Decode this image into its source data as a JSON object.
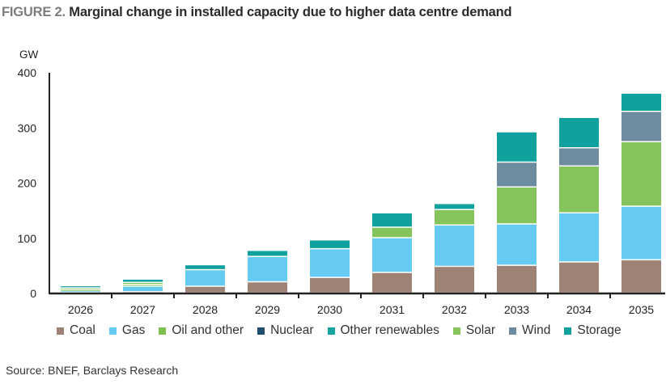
{
  "figure": {
    "label": "FIGURE 2.",
    "title": "Marginal change in installed capacity due to higher data centre demand",
    "source": "Source: BNEF, Barclays Research"
  },
  "chart_data": {
    "type": "bar",
    "stacked": true,
    "title": "Marginal change in installed capacity due to higher data centre demand",
    "xlabel": "",
    "ylabel": "GW",
    "ylim": [
      0,
      400
    ],
    "yticks": [
      0,
      100,
      200,
      300,
      400
    ],
    "grid": false,
    "legend_position": "bottom",
    "categories": [
      "2026",
      "2027",
      "2028",
      "2029",
      "2030",
      "2031",
      "2032",
      "2033",
      "2034",
      "2035"
    ],
    "series": [
      {
        "name": "Coal",
        "color": "#9E8275",
        "values": [
          1,
          2,
          12,
          20,
          28,
          37,
          48,
          50,
          56,
          60
        ]
      },
      {
        "name": "Gas",
        "color": "#66CBF2",
        "values": [
          3,
          10,
          30,
          46,
          52,
          63,
          75,
          75,
          89,
          97
        ]
      },
      {
        "name": "Oil and other",
        "color": "#7DC14C",
        "values": [
          2,
          3,
          0,
          0,
          0,
          0,
          0,
          0,
          0,
          0
        ]
      },
      {
        "name": "Nuclear",
        "color": "#1F4E6E",
        "values": [
          0,
          0,
          0,
          0,
          0,
          0,
          0,
          0,
          0,
          0
        ]
      },
      {
        "name": "Other renewables",
        "color": "#16A3A0",
        "values": [
          0,
          0,
          0,
          0,
          0,
          0,
          0,
          0,
          0,
          0
        ]
      },
      {
        "name": "Solar",
        "color": "#85C45A",
        "values": [
          3,
          4,
          0,
          0,
          0,
          19,
          28,
          67,
          85,
          117
        ]
      },
      {
        "name": "Wind",
        "color": "#6E8CA0",
        "values": [
          0,
          0,
          0,
          0,
          0,
          0,
          0,
          45,
          33,
          55
        ]
      },
      {
        "name": "Storage",
        "color": "#0FA19E",
        "values": [
          4,
          6,
          9,
          11,
          16,
          26,
          11,
          55,
          55,
          33
        ]
      }
    ]
  },
  "legend": [
    {
      "label": "Coal",
      "color": "#9E8275"
    },
    {
      "label": "Gas",
      "color": "#66CBF2"
    },
    {
      "label": "Oil and other",
      "color": "#7DC14C"
    },
    {
      "label": "Nuclear",
      "color": "#1F4E6E"
    },
    {
      "label": "Other renewables",
      "color": "#16A3A0"
    },
    {
      "label": "Solar",
      "color": "#85C45A"
    },
    {
      "label": "Wind",
      "color": "#6E8CA0"
    },
    {
      "label": "Storage",
      "color": "#0FA19E"
    }
  ]
}
